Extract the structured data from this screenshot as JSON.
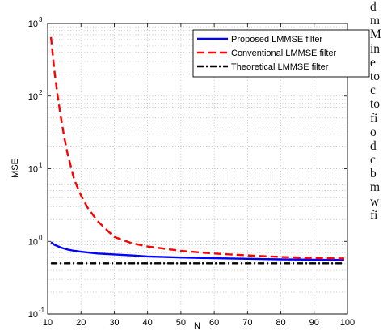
{
  "chart_data": {
    "type": "line",
    "xlabel": "N",
    "ylabel": "MSE",
    "xlim": [
      10,
      100
    ],
    "ylim": [
      0.1,
      1000
    ],
    "yscale": "log",
    "grid": true,
    "legend_position": "top-right",
    "x_ticks": [
      "10",
      "20",
      "30",
      "40",
      "50",
      "60",
      "70",
      "80",
      "90",
      "100"
    ],
    "y_ticks": [
      {
        "base": "10",
        "exp": "-1"
      },
      {
        "base": "10",
        "exp": "0"
      },
      {
        "base": "10",
        "exp": "1"
      },
      {
        "base": "10",
        "exp": "2"
      },
      {
        "base": "10",
        "exp": "3"
      }
    ],
    "series": [
      {
        "name": "Proposed LMMSE filter",
        "color": "#0000ff",
        "style": "solid",
        "x": [
          11,
          12,
          14,
          16,
          18,
          20,
          25,
          30,
          35,
          40,
          50,
          60,
          70,
          80,
          90,
          99
        ],
        "y": [
          0.97,
          0.9,
          0.82,
          0.77,
          0.74,
          0.72,
          0.68,
          0.66,
          0.64,
          0.62,
          0.6,
          0.585,
          0.575,
          0.565,
          0.56,
          0.555
        ]
      },
      {
        "name": "Conventional LMMSE filter",
        "color": "#ff0000",
        "style": "dashed",
        "x": [
          11,
          12,
          13,
          14,
          15,
          16,
          17,
          18,
          20,
          22,
          25,
          28,
          30,
          35,
          40,
          50,
          60,
          70,
          80,
          90,
          99
        ],
        "y": [
          650,
          230,
          100,
          50,
          27,
          16,
          10.5,
          7,
          4.3,
          2.9,
          1.9,
          1.4,
          1.15,
          0.95,
          0.85,
          0.74,
          0.68,
          0.64,
          0.61,
          0.59,
          0.58
        ]
      },
      {
        "name": "Theoretical LMMSE filter",
        "color": "#000000",
        "style": "dashdot",
        "x": [
          11,
          99
        ],
        "y": [
          0.5,
          0.5
        ]
      }
    ]
  },
  "side_text_lines": [
    "d",
    "m",
    "M",
    "in",
    "e",
    "to",
    "c",
    "to",
    "fi",
    "o",
    "d",
    "c",
    "b",
    "m",
    "w",
    "fi"
  ]
}
